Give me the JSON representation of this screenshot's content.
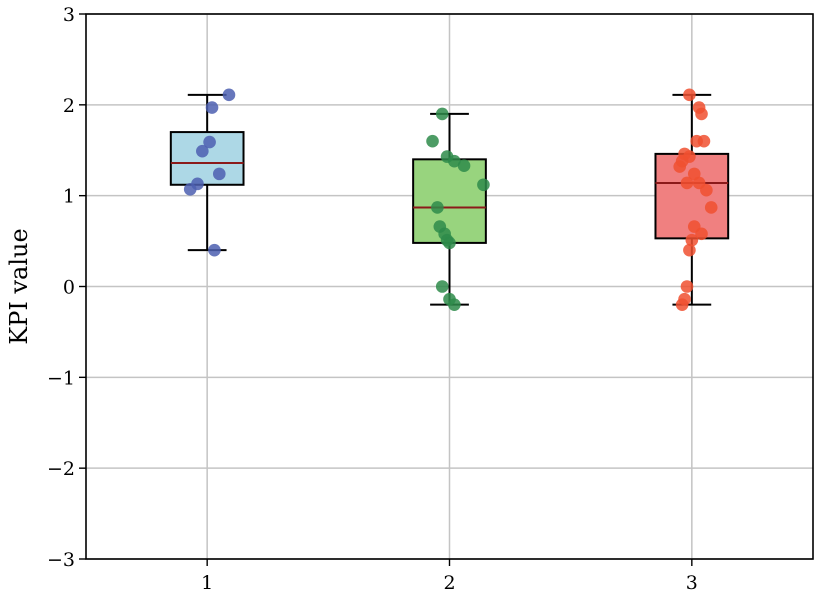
{
  "chart_data": {
    "type": "box",
    "title": "",
    "xlabel": "",
    "ylabel": "KPI value",
    "ylim": [
      -3,
      3
    ],
    "yticks": [
      3,
      2,
      1,
      0,
      -1,
      -2,
      -3
    ],
    "ytick_labels": [
      "3",
      "2",
      "1",
      "0",
      "−1",
      "−2",
      "−3"
    ],
    "grid": true,
    "categories": [
      "1",
      "2",
      "3"
    ],
    "boxes": [
      {
        "name": "1",
        "color": "#add8e6",
        "point_color": "#4c5fb0",
        "whisker_low": 0.4,
        "q1": 1.12,
        "median": 1.36,
        "q3": 1.7,
        "whisker_high": 2.11,
        "points": [
          {
            "x": 0.93,
            "y": 1.07
          },
          {
            "x": 0.96,
            "y": 1.13
          },
          {
            "x": 0.98,
            "y": 1.49
          },
          {
            "x": 1.02,
            "y": 1.97
          },
          {
            "x": 1.03,
            "y": 0.4
          },
          {
            "x": 1.05,
            "y": 1.24
          },
          {
            "x": 1.09,
            "y": 2.11
          },
          {
            "x": 1.01,
            "y": 1.59
          }
        ]
      },
      {
        "name": "2",
        "color": "#98d47e",
        "point_color": "#2e8b4a",
        "whisker_low": -0.2,
        "q1": 0.48,
        "median": 0.87,
        "q3": 1.4,
        "whisker_high": 1.9,
        "points": [
          {
            "x": 1.93,
            "y": 1.6
          },
          {
            "x": 1.97,
            "y": 1.9
          },
          {
            "x": 1.99,
            "y": 1.43
          },
          {
            "x": 2.02,
            "y": 1.38
          },
          {
            "x": 2.06,
            "y": 1.33
          },
          {
            "x": 2.14,
            "y": 1.12
          },
          {
            "x": 1.95,
            "y": 0.87
          },
          {
            "x": 1.96,
            "y": 0.66
          },
          {
            "x": 1.98,
            "y": 0.58
          },
          {
            "x": 1.99,
            "y": 0.51
          },
          {
            "x": 2.0,
            "y": 0.48
          },
          {
            "x": 1.97,
            "y": 0.0
          },
          {
            "x": 2.0,
            "y": -0.14
          },
          {
            "x": 2.02,
            "y": -0.2
          }
        ]
      },
      {
        "name": "3",
        "color": "#f08080",
        "point_color": "#f05030",
        "whisker_low": -0.2,
        "q1": 0.53,
        "median": 1.14,
        "q3": 1.46,
        "whisker_high": 2.11,
        "points": [
          {
            "x": 2.99,
            "y": 2.11
          },
          {
            "x": 3.03,
            "y": 1.97
          },
          {
            "x": 3.04,
            "y": 1.9
          },
          {
            "x": 3.02,
            "y": 1.6
          },
          {
            "x": 3.05,
            "y": 1.6
          },
          {
            "x": 2.97,
            "y": 1.46
          },
          {
            "x": 2.99,
            "y": 1.43
          },
          {
            "x": 2.96,
            "y": 1.38
          },
          {
            "x": 2.95,
            "y": 1.32
          },
          {
            "x": 3.01,
            "y": 1.24
          },
          {
            "x": 2.98,
            "y": 1.14
          },
          {
            "x": 3.03,
            "y": 1.14
          },
          {
            "x": 3.06,
            "y": 1.06
          },
          {
            "x": 3.08,
            "y": 0.87
          },
          {
            "x": 3.01,
            "y": 0.66
          },
          {
            "x": 3.04,
            "y": 0.58
          },
          {
            "x": 3.0,
            "y": 0.51
          },
          {
            "x": 2.99,
            "y": 0.4
          },
          {
            "x": 2.98,
            "y": 0.0
          },
          {
            "x": 2.97,
            "y": -0.14
          },
          {
            "x": 2.96,
            "y": -0.2
          }
        ]
      }
    ]
  }
}
